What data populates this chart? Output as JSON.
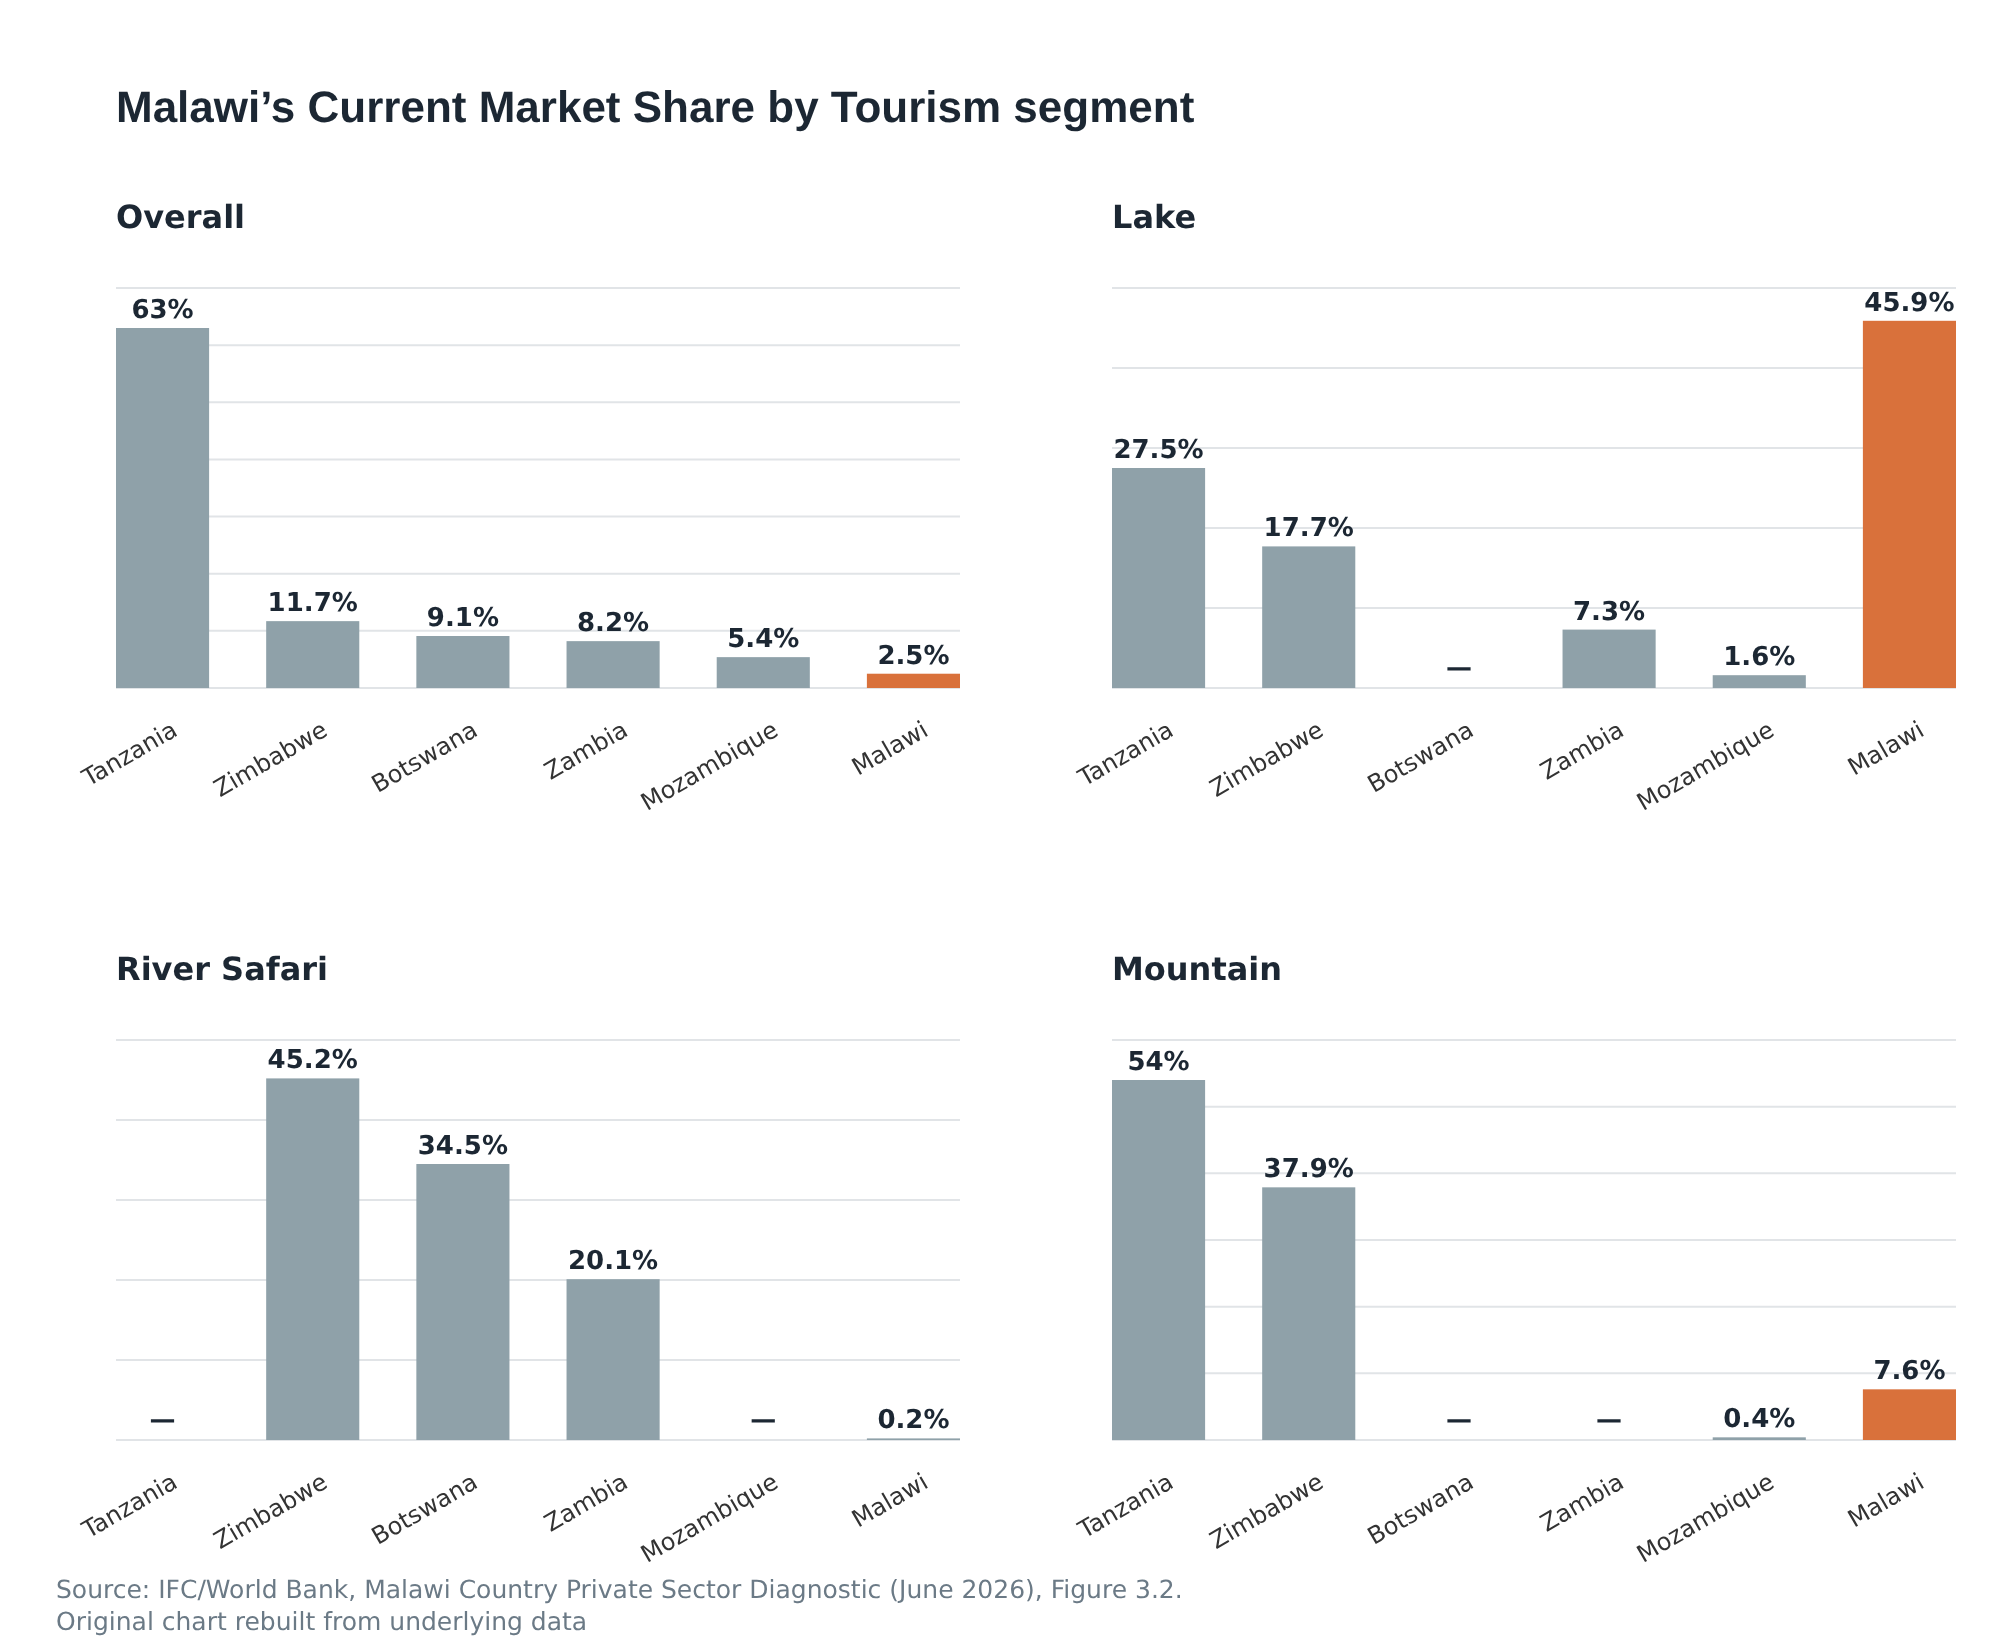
{
  "chart_data": [
    {
      "type": "bar",
      "title": "Malawi’s Current Market Share by Tourism segment",
      "subtitle": "Overall",
      "categories": [
        "Tanzania",
        "Zimbabwe",
        "Botswana",
        "Zambia",
        "Mozambique",
        "Malawi"
      ],
      "values": [
        63,
        11.7,
        9.1,
        8.2,
        5.4,
        2.5
      ],
      "colors": [
        "#8fa1a9",
        "#8fa1a9",
        "#8fa1a9",
        "#8fa1a9",
        "#8fa1a9",
        "#d9713b"
      ],
      "value_labels": [
        "63%",
        "11.7%",
        "9.1%",
        "8.2%",
        "5.4%",
        "2.5%"
      ],
      "ylim": [
        0,
        70
      ],
      "yticks": [
        {
          "value": 0,
          "label": null
        },
        {
          "value": 10,
          "label": null
        },
        {
          "value": 20,
          "label": null
        },
        {
          "value": 30,
          "label": null
        },
        {
          "value": 40,
          "label": null
        },
        {
          "value": 50,
          "label": null
        },
        {
          "value": 60,
          "label": null
        },
        {
          "value": 70,
          "label": null
        }
      ],
      "grid": "y",
      "tick_labels": "x"
    },
    {
      "type": "bar",
      "title": "Lake",
      "categories": [
        "Tanzania",
        "Zimbabwe",
        "Botswana",
        "Zambia",
        "Mozambique",
        "Malawi"
      ],
      "values": [
        27.5,
        17.7,
        null,
        7.3,
        1.6,
        45.9
      ],
      "colors": [
        "#8fa1a9",
        "#8fa1a9",
        null,
        "#8fa1a9",
        "#8fa1a9",
        "#d9713b"
      ],
      "value_labels": [
        "27.5%",
        "17.7%",
        "—",
        "7.3%",
        "1.6%",
        "45.9%"
      ],
      "ylim": [
        0,
        50
      ],
      "yticks": [
        {
          "value": 0,
          "label": null
        },
        {
          "value": 10,
          "label": null
        },
        {
          "value": 20,
          "label": null
        },
        {
          "value": 30,
          "label": null
        },
        {
          "value": 40,
          "label": null
        },
        {
          "value": 50,
          "label": null
        }
      ],
      "grid": "y",
      "tick_labels": "x"
    },
    {
      "type": "bar",
      "title": "River Safari",
      "categories": [
        "Tanzania",
        "Zimbabwe",
        "Botswana",
        "Zambia",
        "Mozambique",
        "Malawi"
      ],
      "values": [
        null,
        45.2,
        34.5,
        20.1,
        null,
        0.2
      ],
      "colors": [
        null,
        "#8fa1a9",
        "#8fa1a9",
        "#8fa1a9",
        null,
        "#8fa1a9"
      ],
      "value_labels": [
        "—",
        "45.2%",
        "34.5%",
        "20.1%",
        "—",
        "0.2%"
      ],
      "ylim": [
        0,
        50
      ],
      "yticks": [
        {
          "value": 0,
          "label": null
        },
        {
          "value": 10,
          "label": null
        },
        {
          "value": 20,
          "label": null
        },
        {
          "value": 30,
          "label": null
        },
        {
          "value": 40,
          "label": null
        },
        {
          "value": 50,
          "label": null
        }
      ],
      "grid": "y",
      "tick_labels": "x"
    },
    {
      "type": "bar",
      "title": "Mountain",
      "categories": [
        "Tanzania",
        "Zimbabwe",
        "Botswana",
        "Zambia",
        "Mozambique",
        "Malawi"
      ],
      "values": [
        54,
        37.9,
        null,
        null,
        0.4,
        7.6
      ],
      "colors": [
        "#8fa1a9",
        "#8fa1a9",
        null,
        null,
        "#8fa1a9",
        "#d9713b"
      ],
      "value_labels": [
        "54%",
        "37.9%",
        "—",
        "—",
        "0.4%",
        "7.6%"
      ],
      "ylim": [
        0,
        60
      ],
      "yticks": [
        {
          "value": 0,
          "label": null
        },
        {
          "value": 10,
          "label": null
        },
        {
          "value": 20,
          "label": null
        },
        {
          "value": 30,
          "label": null
        },
        {
          "value": 40,
          "label": null
        },
        {
          "value": 50,
          "label": null
        },
        {
          "value": 60,
          "label": null
        }
      ],
      "grid": "y",
      "tick_labels": "x",
      "annotations": [
        "Source: IFC/World Bank, Malawi Country Private Sector Diagnostic (June 2026), Figure 3.2.",
        "Original chart rebuilt from underlying data"
      ]
    }
  ]
}
